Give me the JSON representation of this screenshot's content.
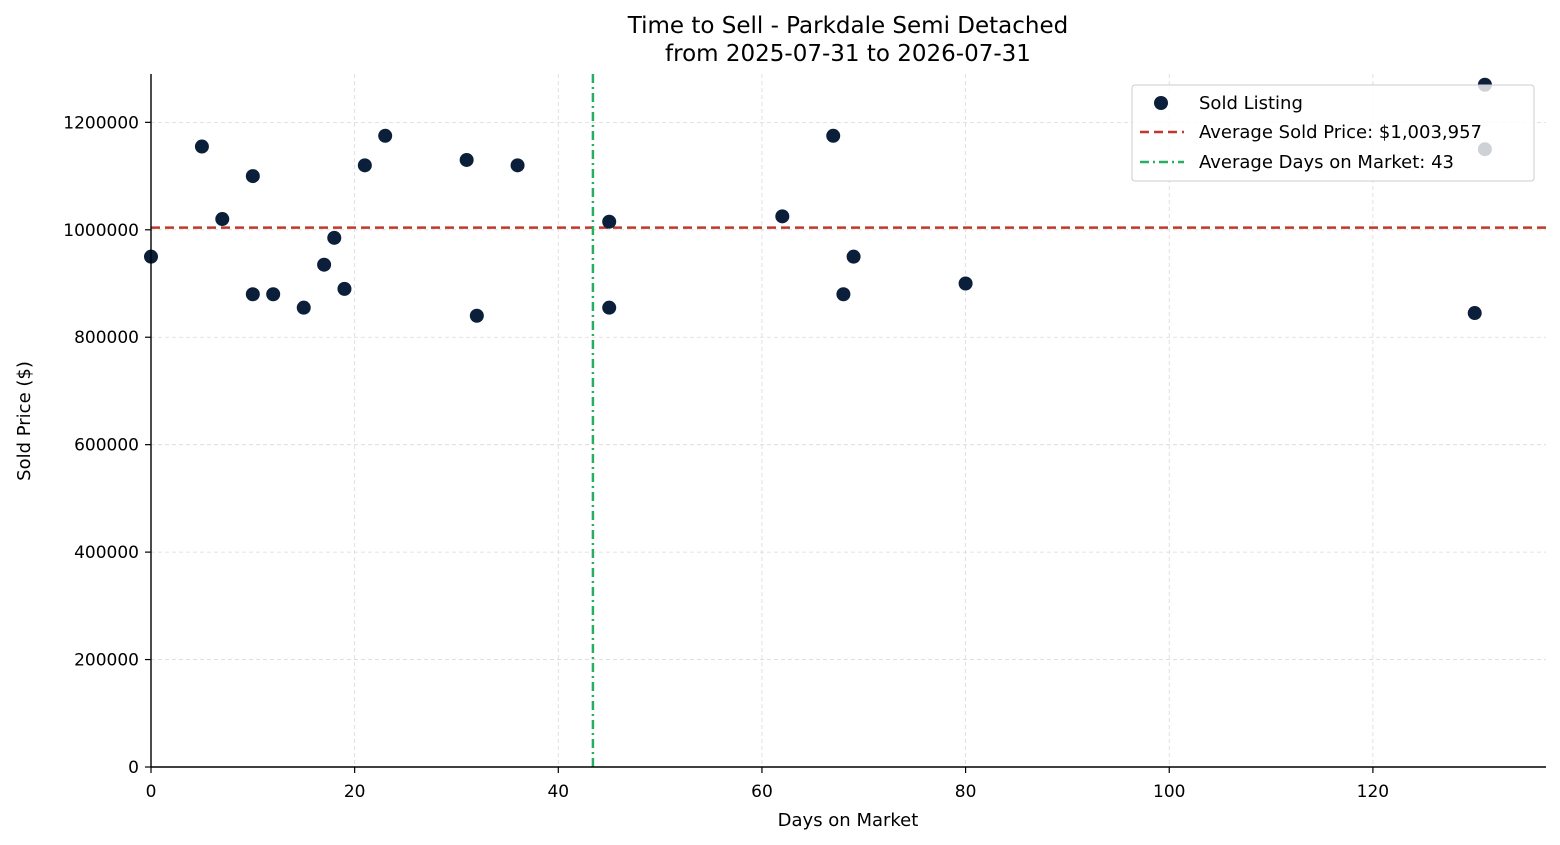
{
  "chart_data": {
    "type": "scatter",
    "title": [
      "Time to Sell - Parkdale Semi Detached",
      "from 2025-07-31 to 2026-07-31"
    ],
    "xlabel": "Days on Market",
    "ylabel": "Sold Price ($)",
    "xlim": [
      0,
      137
    ],
    "ylim": [
      0,
      1290000
    ],
    "xticks": [
      0,
      20,
      40,
      60,
      80,
      100,
      120
    ],
    "yticks": [
      0,
      200000,
      400000,
      600000,
      800000,
      1000000,
      1200000
    ],
    "grid": true,
    "legend_position": "top-right",
    "colors": {
      "points": "#0b1f3a",
      "avg_price_line": "#c0392b",
      "avg_days_line": "#27ae60",
      "grid": "#d9d9d9",
      "axis": "#000000"
    },
    "series": [
      {
        "name": "Sold Listing",
        "points": [
          [
            0,
            950000
          ],
          [
            5,
            1155000
          ],
          [
            7,
            1020000
          ],
          [
            10,
            1100000
          ],
          [
            10,
            880000
          ],
          [
            12,
            880000
          ],
          [
            15,
            855000
          ],
          [
            17,
            935000
          ],
          [
            18,
            985000
          ],
          [
            19,
            890000
          ],
          [
            21,
            1120000
          ],
          [
            23,
            1175000
          ],
          [
            31,
            1130000
          ],
          [
            32,
            840000
          ],
          [
            36,
            1120000
          ],
          [
            45,
            1015000
          ],
          [
            45,
            855000
          ],
          [
            62,
            1025000
          ],
          [
            67,
            1175000
          ],
          [
            68,
            880000
          ],
          [
            69,
            950000
          ],
          [
            80,
            900000
          ],
          [
            130,
            845000
          ],
          [
            131,
            1270000
          ],
          [
            131,
            1150000
          ]
        ]
      }
    ],
    "average_sold_price": 1003957,
    "average_days_on_market": 43.4,
    "legend": [
      "Sold Listing",
      "Average Sold Price: $1,003,957",
      "Average Days on Market: 43"
    ]
  }
}
